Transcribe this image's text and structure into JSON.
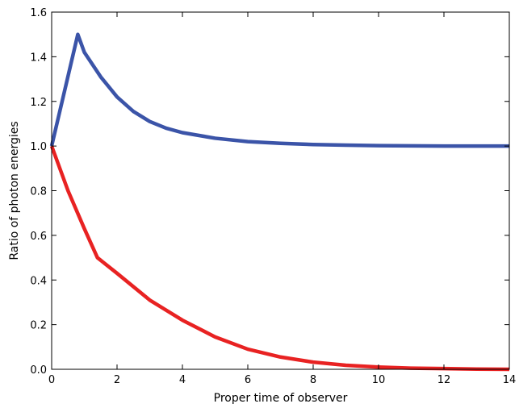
{
  "chart_data": {
    "type": "line",
    "title": "",
    "xlabel": "Proper time of observer",
    "ylabel": "Ratio of photon energies",
    "xlim": [
      0,
      14
    ],
    "ylim": [
      0.0,
      1.6
    ],
    "xticks": [
      0,
      2,
      4,
      6,
      8,
      10,
      12,
      14
    ],
    "xtick_labels": [
      "0",
      "2",
      "4",
      "6",
      "8",
      "10",
      "12",
      "14"
    ],
    "yticks": [
      0.0,
      0.2,
      0.4,
      0.6,
      0.8,
      1.0,
      1.2,
      1.4,
      1.6
    ],
    "ytick_labels": [
      "0.0",
      "0.2",
      "0.4",
      "0.6",
      "0.8",
      "1.0",
      "1.2",
      "1.4",
      "1.6"
    ],
    "grid": false,
    "legend": false,
    "series": [
      {
        "color": "#3b54a8",
        "x": [
          0,
          0.8,
          1.0,
          1.5,
          2.0,
          2.5,
          3.0,
          3.5,
          4.0,
          5.0,
          6.0,
          7.0,
          8.0,
          9.0,
          10.0,
          11.0,
          12.0,
          13.0,
          14.0
        ],
        "y": [
          1.0,
          1.5,
          1.42,
          1.31,
          1.22,
          1.155,
          1.11,
          1.08,
          1.06,
          1.035,
          1.02,
          1.012,
          1.007,
          1.004,
          1.002,
          1.001,
          1.0,
          1.0,
          1.0
        ]
      },
      {
        "color": "#e82222",
        "x": [
          0,
          0.5,
          1.0,
          1.4,
          2.0,
          3.0,
          4.0,
          5.0,
          6.0,
          7.0,
          8.0,
          9.0,
          10.0,
          11.0,
          12.0,
          13.0,
          14.0
        ],
        "y": [
          1.0,
          0.8,
          0.63,
          0.5,
          0.43,
          0.31,
          0.22,
          0.145,
          0.09,
          0.055,
          0.032,
          0.018,
          0.01,
          0.005,
          0.003,
          0.001,
          0.0
        ]
      }
    ]
  }
}
